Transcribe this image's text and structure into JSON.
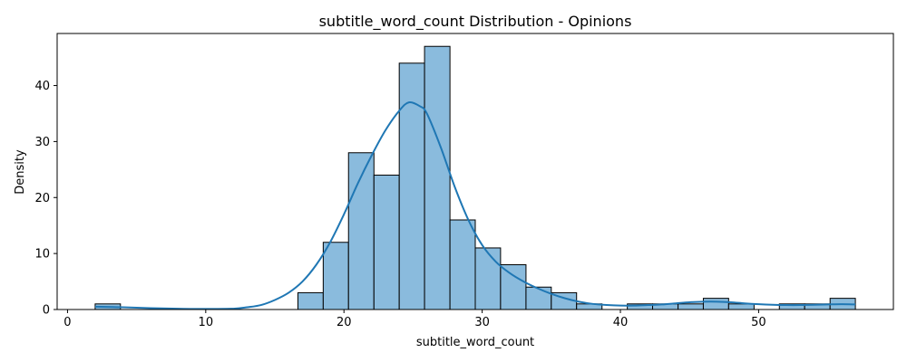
{
  "chart_data": {
    "type": "bar",
    "title": "subtitle_word_count Distribution - Opinions",
    "xlabel": "subtitle_word_count",
    "ylabel": "Density",
    "xlim": [
      -0.75,
      59.75
    ],
    "ylim": [
      0,
      49.3
    ],
    "xticks": [
      0,
      10,
      20,
      30,
      40,
      50
    ],
    "yticks": [
      0,
      10,
      20,
      30,
      40
    ],
    "grid": false,
    "bar_color": "#8abbdd",
    "bar_edge_color": "#000000",
    "kde_color": "#1f77b4",
    "bins": [
      {
        "x0": 2.0,
        "x1": 3.83,
        "value": 1
      },
      {
        "x0": 3.83,
        "x1": 5.67,
        "value": 0
      },
      {
        "x0": 5.67,
        "x1": 7.5,
        "value": 0
      },
      {
        "x0": 7.5,
        "x1": 9.33,
        "value": 0
      },
      {
        "x0": 9.33,
        "x1": 11.17,
        "value": 0
      },
      {
        "x0": 11.17,
        "x1": 13.0,
        "value": 0
      },
      {
        "x0": 13.0,
        "x1": 14.83,
        "value": 0
      },
      {
        "x0": 14.83,
        "x1": 16.67,
        "value": 0
      },
      {
        "x0": 16.67,
        "x1": 18.5,
        "value": 3
      },
      {
        "x0": 18.5,
        "x1": 20.33,
        "value": 12
      },
      {
        "x0": 20.33,
        "x1": 22.17,
        "value": 28
      },
      {
        "x0": 22.17,
        "x1": 24.0,
        "value": 24
      },
      {
        "x0": 24.0,
        "x1": 25.83,
        "value": 44
      },
      {
        "x0": 25.83,
        "x1": 27.67,
        "value": 47
      },
      {
        "x0": 27.67,
        "x1": 29.5,
        "value": 16
      },
      {
        "x0": 29.5,
        "x1": 31.33,
        "value": 11
      },
      {
        "x0": 31.33,
        "x1": 33.17,
        "value": 8
      },
      {
        "x0": 33.17,
        "x1": 35.0,
        "value": 4
      },
      {
        "x0": 35.0,
        "x1": 36.83,
        "value": 3
      },
      {
        "x0": 36.83,
        "x1": 38.67,
        "value": 1
      },
      {
        "x0": 38.67,
        "x1": 40.5,
        "value": 0
      },
      {
        "x0": 40.5,
        "x1": 42.33,
        "value": 1
      },
      {
        "x0": 42.33,
        "x1": 44.17,
        "value": 1
      },
      {
        "x0": 44.17,
        "x1": 46.0,
        "value": 1
      },
      {
        "x0": 46.0,
        "x1": 47.83,
        "value": 2
      },
      {
        "x0": 47.83,
        "x1": 49.67,
        "value": 1
      },
      {
        "x0": 49.67,
        "x1": 51.5,
        "value": 0
      },
      {
        "x0": 51.5,
        "x1": 53.33,
        "value": 1
      },
      {
        "x0": 53.33,
        "x1": 55.17,
        "value": 1
      },
      {
        "x0": 55.17,
        "x1": 57.0,
        "value": 2
      }
    ],
    "kde": {
      "x": [
        2,
        4,
        6,
        8,
        10,
        12,
        13,
        14,
        15,
        16,
        17,
        18,
        19,
        20,
        21,
        22,
        23,
        24,
        24.7,
        25.5,
        26,
        27,
        28,
        29,
        30,
        31,
        32,
        33,
        34,
        35,
        36,
        37,
        38,
        39,
        40,
        41,
        42,
        43,
        44,
        45,
        46,
        47,
        48,
        49,
        50,
        51,
        52,
        53,
        54,
        55,
        56,
        57
      ],
      "y": [
        0.5,
        0.4,
        0.25,
        0.15,
        0.1,
        0.15,
        0.4,
        0.8,
        1.7,
        3.0,
        5.0,
        8.0,
        12.0,
        17.0,
        22.5,
        27.5,
        32.0,
        35.5,
        37.0,
        36.3,
        35.0,
        29.0,
        22.0,
        16.0,
        11.5,
        8.5,
        6.5,
        5.0,
        3.8,
        2.8,
        2.0,
        1.4,
        1.0,
        0.8,
        0.7,
        0.7,
        0.8,
        0.9,
        1.1,
        1.3,
        1.4,
        1.4,
        1.3,
        1.1,
        0.95,
        0.85,
        0.8,
        0.8,
        0.85,
        0.9,
        0.95,
        0.9
      ]
    }
  }
}
